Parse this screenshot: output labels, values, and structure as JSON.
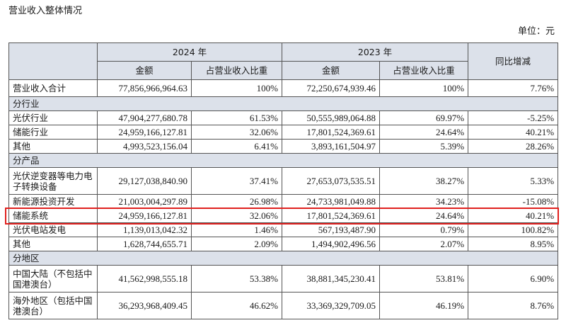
{
  "page_title": "营业收入整体情况",
  "unit_label": "单位：元",
  "header": {
    "year_2024": "2024 年",
    "year_2023": "2023 年",
    "amount": "金额",
    "ratio": "占营业收入比重",
    "yoy": "同比增减"
  },
  "total": {
    "label": "营业收入合计",
    "a24": "77,856,966,964.63",
    "r24": "100%",
    "a23": "72,250,674,939.46",
    "r23": "100%",
    "yoy": "7.76%"
  },
  "sec_industry": "分行业",
  "industry": [
    {
      "label": "光伏行业",
      "a24": "47,904,277,680.78",
      "r24": "61.53%",
      "a23": "50,555,989,064.88",
      "r23": "69.97%",
      "yoy": "-5.25%"
    },
    {
      "label": "储能行业",
      "a24": "24,959,166,127.81",
      "r24": "32.06%",
      "a23": "17,801,524,369.61",
      "r23": "24.64%",
      "yoy": "40.21%"
    },
    {
      "label": "其他",
      "a24": "4,993,523,156.04",
      "r24": "6.41%",
      "a23": "3,893,161,504.97",
      "r23": "5.39%",
      "yoy": "28.26%"
    }
  ],
  "sec_product": "分产品",
  "product": [
    {
      "label": "光伏逆变器等电力电子转换设备",
      "a24": "29,127,038,840.90",
      "r24": "37.41%",
      "a23": "27,653,073,535.51",
      "r23": "38.27%",
      "yoy": "5.33%"
    },
    {
      "label": "新能源投资开发",
      "a24": "21,003,004,297.89",
      "r24": "26.98%",
      "a23": "24,733,981,049.88",
      "r23": "34.23%",
      "yoy": "-15.08%"
    },
    {
      "label": "储能系统",
      "a24": "24,959,166,127.81",
      "r24": "32.06%",
      "a23": "17,801,524,369.61",
      "r23": "24.64%",
      "yoy": "40.21%"
    },
    {
      "label": "光伏电站发电",
      "a24": "1,139,013,042.32",
      "r24": "1.46%",
      "a23": "567,193,487.90",
      "r23": "0.79%",
      "yoy": "100.82%"
    },
    {
      "label": "其他",
      "a24": "1,628,744,655.71",
      "r24": "2.09%",
      "a23": "1,494,902,496.56",
      "r23": "2.07%",
      "yoy": "8.95%"
    }
  ],
  "sec_region": "分地区",
  "region": [
    {
      "label": "中国大陆（不包括中国港澳台）",
      "a24": "41,562,998,555.18",
      "r24": "53.38%",
      "a23": "38,881,345,230.41",
      "r23": "53.81%",
      "yoy": "6.90%"
    },
    {
      "label": "海外地区（包括中国港澳台）",
      "a24": "36,293,968,409.45",
      "r24": "46.62%",
      "a23": "33,369,329,709.05",
      "r23": "46.19%",
      "yoy": "8.76%"
    }
  ]
}
